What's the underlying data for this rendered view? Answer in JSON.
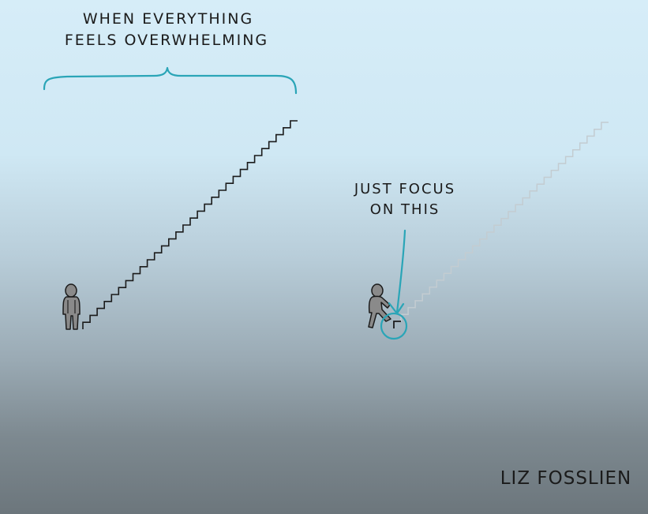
{
  "caption": {
    "line1": "WHEN EVERYTHING",
    "line2": "FEELS OVERWHELMING"
  },
  "focus_label": {
    "line1": "JUST FOCUS",
    "line2": "ON THIS"
  },
  "signature": "LIZ FOSSLIEN",
  "colors": {
    "accent": "#2aa5b7",
    "ink": "#1b1b1b",
    "figure": "#8a8a8a",
    "faded_stairs": "#c3ccd1"
  },
  "icons": {
    "left_figure": "standing-person-icon",
    "right_figure": "stepping-person-icon",
    "brace": "curly-brace-icon",
    "arrow": "down-arrow-icon",
    "circle": "highlight-circle-icon"
  }
}
